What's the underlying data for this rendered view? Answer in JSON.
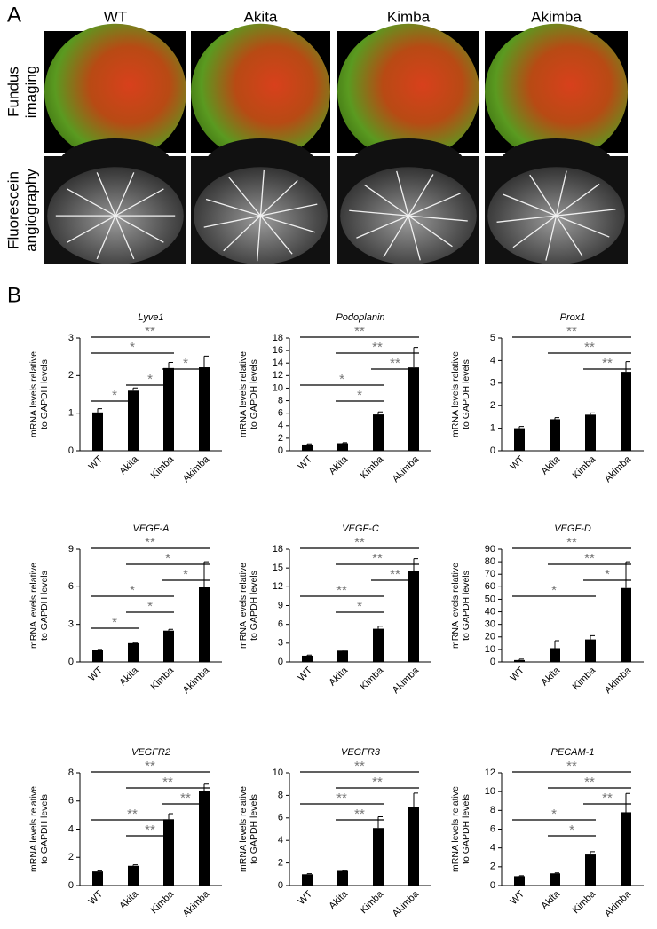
{
  "panel_labels": [
    "A",
    "B"
  ],
  "panel_a": {
    "columns": [
      "WT",
      "Akita",
      "Kimba",
      "Akimba"
    ],
    "rows": [
      [
        "Fundus",
        "imaging"
      ],
      [
        "Fluorescein",
        "angiography"
      ]
    ]
  },
  "chart_data": [
    {
      "type": "bar",
      "title": "Lyve1",
      "ylabel": [
        "mRNA levels relative",
        "to GAPDH levels"
      ],
      "categories": [
        "WT",
        "Akita",
        "Kimba",
        "Akimba"
      ],
      "values": [
        1.02,
        1.6,
        2.2,
        2.22
      ],
      "errors": [
        0.1,
        0.07,
        0.15,
        0.3
      ],
      "ylim": [
        0,
        3
      ],
      "yticks": [
        0,
        1,
        2,
        3
      ],
      "color": "#000000",
      "comparisons": [
        {
          "groups": [
            "WT",
            "Akimba"
          ],
          "label": "**"
        },
        {
          "groups": [
            "WT",
            "Kimba"
          ],
          "label": "*"
        },
        {
          "groups": [
            "Kimba",
            "Akimba"
          ],
          "label": "*"
        },
        {
          "groups": [
            "Akita",
            "Kimba"
          ],
          "label": "*"
        },
        {
          "groups": [
            "WT",
            "Akita"
          ],
          "label": "*"
        }
      ]
    },
    {
      "type": "bar",
      "title": "Podoplanin",
      "ylabel": [
        "mRNA levels relative",
        "to GAPDH levels"
      ],
      "categories": [
        "WT",
        "Akita",
        "Kimba",
        "Akimba"
      ],
      "values": [
        1,
        1.2,
        5.8,
        13.3
      ],
      "errors": [
        0.1,
        0.1,
        0.4,
        3.2
      ],
      "ylim": [
        0,
        18
      ],
      "yticks": [
        0,
        2,
        4,
        6,
        8,
        10,
        12,
        14,
        16,
        18
      ],
      "color": "#000000",
      "comparisons": [
        {
          "groups": [
            "WT",
            "Akimba"
          ],
          "label": "**"
        },
        {
          "groups": [
            "Akita",
            "Akimba"
          ],
          "label": "**"
        },
        {
          "groups": [
            "Kimba",
            "Akimba"
          ],
          "label": "**"
        },
        {
          "groups": [
            "WT",
            "Kimba"
          ],
          "label": "*"
        },
        {
          "groups": [
            "Akita",
            "Kimba"
          ],
          "label": "*"
        }
      ]
    },
    {
      "type": "bar",
      "title": "Prox1",
      "ylabel": [
        "mRNA levels relative",
        "to GAPDH levels"
      ],
      "categories": [
        "WT",
        "Akita",
        "Kimba",
        "Akimba"
      ],
      "values": [
        1,
        1.4,
        1.6,
        3.5
      ],
      "errors": [
        0.08,
        0.07,
        0.08,
        0.45
      ],
      "ylim": [
        0,
        5
      ],
      "yticks": [
        0,
        1,
        2,
        3,
        4,
        5
      ],
      "color": "#000000",
      "comparisons": [
        {
          "groups": [
            "WT",
            "Akimba"
          ],
          "label": "**"
        },
        {
          "groups": [
            "Akita",
            "Akimba"
          ],
          "label": "**"
        },
        {
          "groups": [
            "Kimba",
            "Akimba"
          ],
          "label": "**"
        }
      ]
    },
    {
      "type": "bar",
      "title": "VEGF-A",
      "ylabel": [
        "mRNA levels relative",
        "to GAPDH levels"
      ],
      "categories": [
        "WT",
        "Akita",
        "Kimba",
        "Akimba"
      ],
      "values": [
        0.95,
        1.5,
        2.5,
        6
      ],
      "errors": [
        0.05,
        0.05,
        0.1,
        2
      ],
      "ylim": [
        0,
        9
      ],
      "yticks": [
        0,
        3,
        6,
        9
      ],
      "color": "#000000",
      "comparisons": [
        {
          "groups": [
            "WT",
            "Akimba"
          ],
          "label": "**"
        },
        {
          "groups": [
            "Akita",
            "Akimba"
          ],
          "label": "*"
        },
        {
          "groups": [
            "Kimba",
            "Akimba"
          ],
          "label": "*"
        },
        {
          "groups": [
            "WT",
            "Kimba"
          ],
          "label": "*"
        },
        {
          "groups": [
            "Akita",
            "Kimba"
          ],
          "label": "*"
        },
        {
          "groups": [
            "WT",
            "Akita"
          ],
          "label": "*"
        }
      ]
    },
    {
      "type": "bar",
      "title": "VEGF-C",
      "ylabel": [
        "mRNA levels relative",
        "to GAPDH levels"
      ],
      "categories": [
        "WT",
        "Akita",
        "Kimba",
        "Akimba"
      ],
      "values": [
        1,
        1.8,
        5.3,
        14.5
      ],
      "errors": [
        0.1,
        0.1,
        0.4,
        2
      ],
      "ylim": [
        0,
        18
      ],
      "yticks": [
        0,
        3,
        6,
        9,
        12,
        15,
        18
      ],
      "color": "#000000",
      "comparisons": [
        {
          "groups": [
            "WT",
            "Akimba"
          ],
          "label": "**"
        },
        {
          "groups": [
            "Akita",
            "Akimba"
          ],
          "label": "**"
        },
        {
          "groups": [
            "Kimba",
            "Akimba"
          ],
          "label": "**"
        },
        {
          "groups": [
            "WT",
            "Kimba"
          ],
          "label": "**"
        },
        {
          "groups": [
            "Akita",
            "Kimba"
          ],
          "label": "*"
        }
      ]
    },
    {
      "type": "bar",
      "title": "VEGF-D",
      "ylabel": [
        "mRNA levels relative",
        "to GAPDH levels"
      ],
      "categories": [
        "WT",
        "Akita",
        "Kimba",
        "Akimba"
      ],
      "values": [
        1.5,
        11,
        18,
        59
      ],
      "errors": [
        0.7,
        6,
        3,
        21
      ],
      "ylim": [
        0,
        90
      ],
      "yticks": [
        0,
        10,
        20,
        30,
        40,
        50,
        60,
        70,
        80,
        90
      ],
      "color": "#000000",
      "comparisons": [
        {
          "groups": [
            "WT",
            "Akimba"
          ],
          "label": "**"
        },
        {
          "groups": [
            "Akita",
            "Akimba"
          ],
          "label": "**"
        },
        {
          "groups": [
            "Kimba",
            "Akimba"
          ],
          "label": "*"
        },
        {
          "groups": [
            "WT",
            "Kimba"
          ],
          "label": "*"
        }
      ]
    },
    {
      "type": "bar",
      "title": "VEGFR2",
      "ylabel": [
        "mRNA levels relative",
        "to GAPDH levels"
      ],
      "categories": [
        "WT",
        "Akita",
        "Kimba",
        "Akimba"
      ],
      "values": [
        1,
        1.4,
        4.7,
        6.7
      ],
      "errors": [
        0.05,
        0.07,
        0.4,
        0.5
      ],
      "ylim": [
        0,
        8
      ],
      "yticks": [
        0,
        2,
        4,
        6,
        8
      ],
      "color": "#000000",
      "comparisons": [
        {
          "groups": [
            "WT",
            "Akimba"
          ],
          "label": "**"
        },
        {
          "groups": [
            "Akita",
            "Akimba"
          ],
          "label": "**"
        },
        {
          "groups": [
            "Kimba",
            "Akimba"
          ],
          "label": "**"
        },
        {
          "groups": [
            "WT",
            "Kimba"
          ],
          "label": "**"
        },
        {
          "groups": [
            "Akita",
            "Kimba"
          ],
          "label": "**"
        }
      ]
    },
    {
      "type": "bar",
      "title": "VEGFR3",
      "ylabel": [
        "mRNA levels relative",
        "to GAPDH levels"
      ],
      "categories": [
        "WT",
        "Akita",
        "Kimba",
        "Akimba"
      ],
      "values": [
        1,
        1.3,
        5.1,
        7
      ],
      "errors": [
        0.05,
        0.05,
        1,
        1.2
      ],
      "ylim": [
        0,
        10
      ],
      "yticks": [
        0,
        2,
        4,
        6,
        8,
        10
      ],
      "color": "#000000",
      "comparisons": [
        {
          "groups": [
            "WT",
            "Akimba"
          ],
          "label": "**"
        },
        {
          "groups": [
            "Akita",
            "Akimba"
          ],
          "label": "**"
        },
        {
          "groups": [
            "WT",
            "Kimba"
          ],
          "label": "**"
        },
        {
          "groups": [
            "Akita",
            "Kimba"
          ],
          "label": "**"
        }
      ]
    },
    {
      "type": "bar",
      "title": "PECAM-1",
      "ylabel": [
        "mRNA levels relative",
        "to GAPDH levels"
      ],
      "categories": [
        "WT",
        "Akita",
        "Kimba",
        "Akimba"
      ],
      "values": [
        1,
        1.3,
        3.3,
        7.8
      ],
      "errors": [
        0.05,
        0.05,
        0.3,
        2
      ],
      "ylim": [
        0,
        12
      ],
      "yticks": [
        0,
        2,
        4,
        6,
        8,
        10,
        12
      ],
      "color": "#000000",
      "comparisons": [
        {
          "groups": [
            "WT",
            "Akimba"
          ],
          "label": "**"
        },
        {
          "groups": [
            "Akita",
            "Akimba"
          ],
          "label": "**"
        },
        {
          "groups": [
            "Kimba",
            "Akimba"
          ],
          "label": "**"
        },
        {
          "groups": [
            "WT",
            "Kimba"
          ],
          "label": "*"
        },
        {
          "groups": [
            "Akita",
            "Kimba"
          ],
          "label": "*"
        }
      ]
    }
  ]
}
